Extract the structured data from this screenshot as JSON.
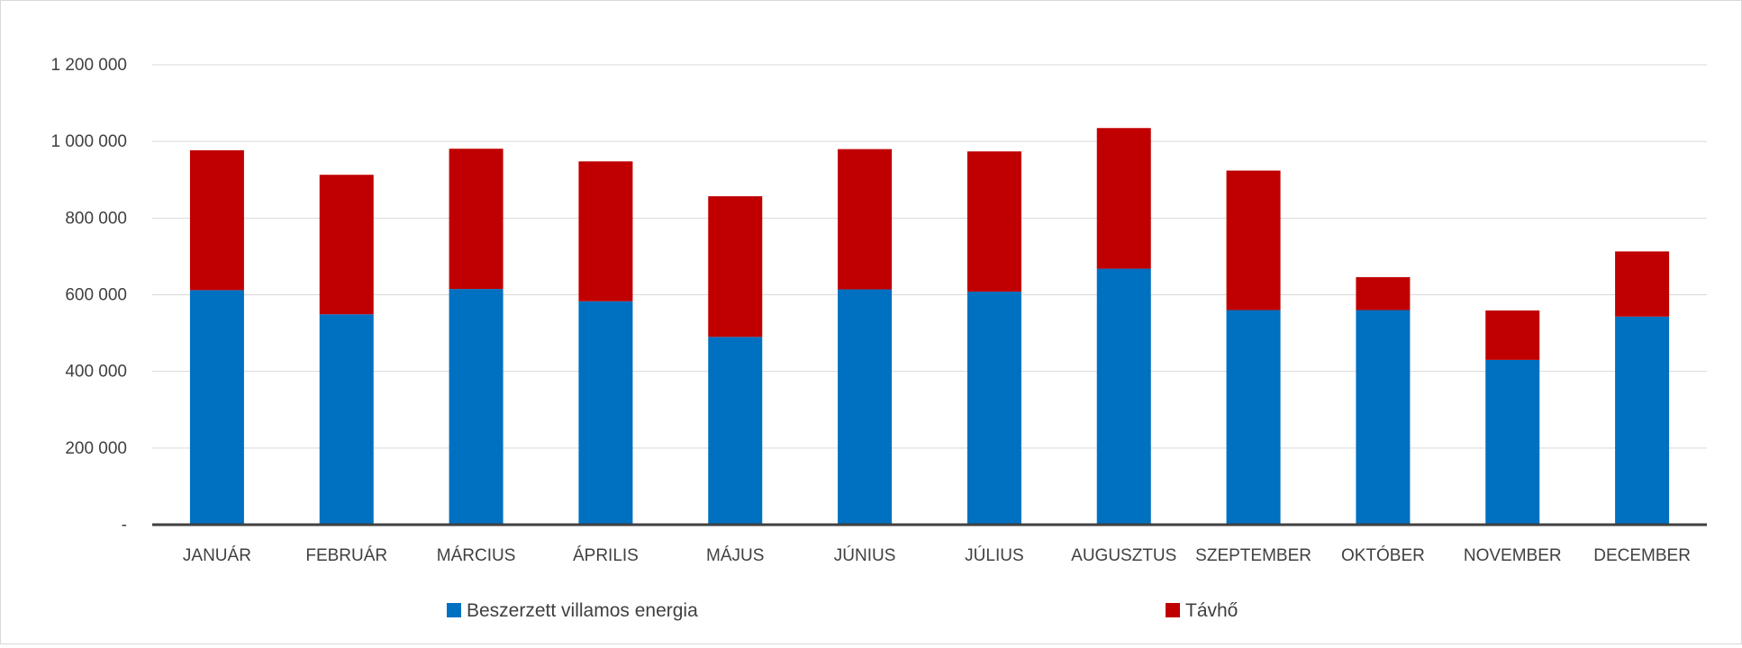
{
  "chart_data": {
    "type": "bar",
    "stacked": true,
    "categories": [
      "JANUÁR",
      "FEBRUÁR",
      "MÁRCIUS",
      "ÁPRILIS",
      "MÁJUS",
      "JÚNIUS",
      "JÚLIUS",
      "AUGUSZTUS",
      "SZEPTEMBER",
      "OKTÓBER",
      "NOVEMBER",
      "DECEMBER"
    ],
    "series": [
      {
        "name": "Beszerzett villamos energia",
        "color": "#0070c0",
        "values": [
          612000,
          549000,
          615000,
          583000,
          490000,
          614000,
          608000,
          668000,
          560000,
          560000,
          430000,
          543000
        ]
      },
      {
        "name": "Távhő",
        "color": "#c00000",
        "values": [
          365000,
          364000,
          366000,
          365000,
          367000,
          366000,
          366000,
          367000,
          364000,
          86000,
          129000,
          170000
        ]
      }
    ],
    "ylim": [
      0,
      1200000
    ],
    "yticks": [
      0,
      200000,
      400000,
      600000,
      800000,
      1000000,
      1200000
    ],
    "ytick_labels": [
      "-",
      "200 000",
      "400 000",
      "600 000",
      "800 000",
      "1 000 000",
      "1 200 000"
    ],
    "grid": true,
    "legend_position": "bottom",
    "title": "",
    "xlabel": "",
    "ylabel": ""
  }
}
